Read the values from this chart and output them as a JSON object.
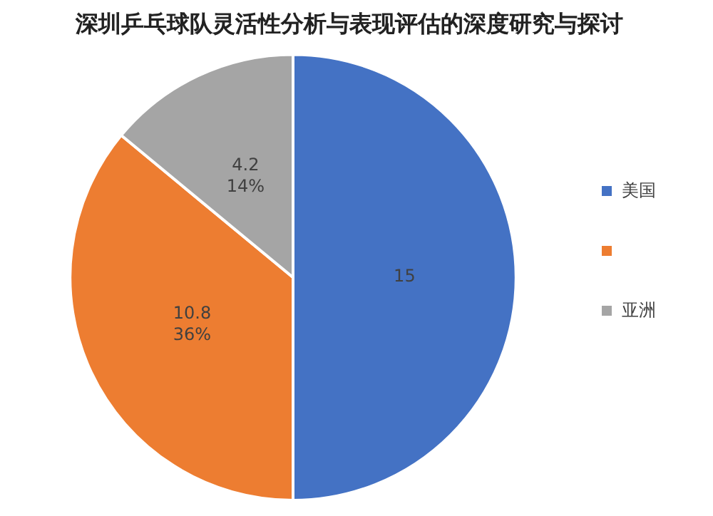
{
  "chart_data": {
    "type": "pie",
    "title": "深圳乒乓球队灵活性分析与表现评估的深度研究与探讨",
    "categories": [
      "美国",
      null,
      "亚洲"
    ],
    "values": [
      15,
      10.8,
      4.2
    ],
    "colors": [
      "#4472c4",
      "#ed7d31",
      "#a5a5a5"
    ],
    "value_labels": [
      "15",
      "10.8\n36%",
      "4.2\n14%"
    ],
    "legend": "right"
  }
}
